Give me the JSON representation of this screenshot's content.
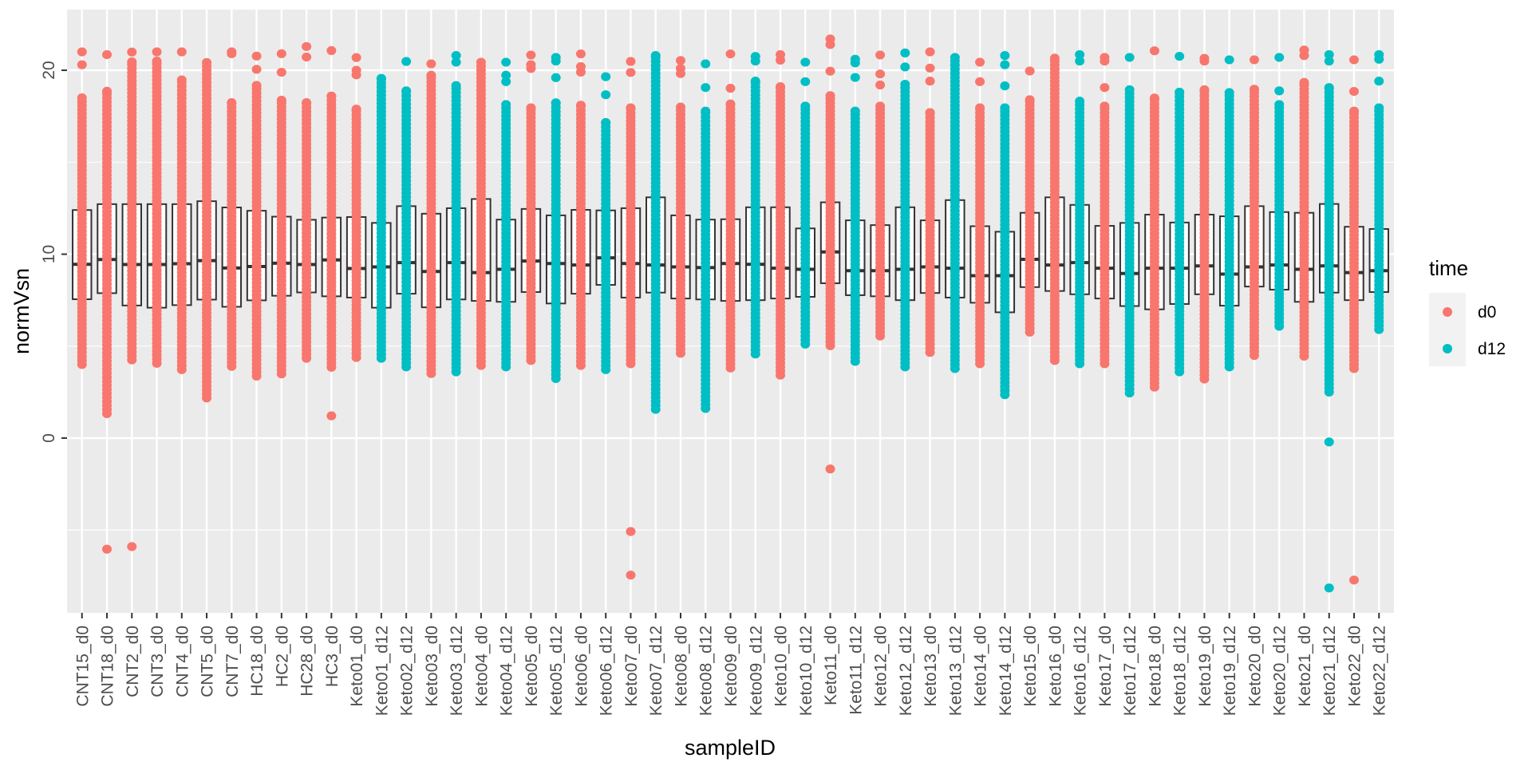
{
  "chart_data": {
    "type": "boxplot",
    "xlabel": "sampleID",
    "ylabel": "normVsn",
    "ylim": [
      -9.5,
      23.3
    ],
    "y_ticks": [
      0,
      10,
      20
    ],
    "y_minor_ticks": [
      -5,
      5,
      15
    ],
    "grid": true,
    "legend": {
      "title": "time",
      "placement": "right",
      "entries": [
        {
          "label": "d0",
          "color": "#F8766D"
        },
        {
          "label": "d12",
          "color": "#00BFC4"
        }
      ]
    },
    "colors": {
      "panel_background": "#EBEBEB",
      "grid": "#FFFFFF",
      "box_line": "#333333",
      "box_fill": "#FFFFFF"
    },
    "samples": [
      {
        "id": "CNT15_d0",
        "time": "d0",
        "q1": 7.55,
        "median": 9.45,
        "q3": 12.4,
        "whisker_low": 4.0,
        "whisker_high": 18.5,
        "points_above": [
          20.3,
          21.0
        ],
        "points_below": []
      },
      {
        "id": "CNT18_d0",
        "time": "d0",
        "q1": 7.88,
        "median": 9.71,
        "q3": 12.72,
        "whisker_low": 1.33,
        "whisker_high": 18.86,
        "points_above": [
          20.85
        ],
        "points_below": [
          -6.04
        ]
      },
      {
        "id": "CNT2_d0",
        "time": "d0",
        "q1": 7.21,
        "median": 9.44,
        "q3": 12.72,
        "whisker_low": 4.25,
        "whisker_high": 20.46,
        "points_above": [
          20.99
        ],
        "points_below": [
          -5.9
        ]
      },
      {
        "id": "CNT3_d0",
        "time": "d0",
        "q1": 7.09,
        "median": 9.44,
        "q3": 12.72,
        "whisker_low": 4.07,
        "whisker_high": 20.5,
        "points_above": [
          21.0
        ],
        "points_below": []
      },
      {
        "id": "CNT4_d0",
        "time": "d0",
        "q1": 7.23,
        "median": 9.48,
        "q3": 12.72,
        "whisker_low": 3.72,
        "whisker_high": 19.48,
        "points_above": [
          21.0
        ],
        "points_below": []
      },
      {
        "id": "CNT5_d0",
        "time": "d0",
        "q1": 7.53,
        "median": 9.65,
        "q3": 12.88,
        "whisker_low": 2.18,
        "whisker_high": 20.42,
        "points_above": [],
        "points_below": []
      },
      {
        "id": "CNT7_d0",
        "time": "d0",
        "q1": 7.14,
        "median": 9.25,
        "q3": 12.54,
        "whisker_low": 3.9,
        "whisker_high": 18.24,
        "points_above": [
          20.9,
          21.0
        ],
        "points_below": []
      },
      {
        "id": "HC18_d0",
        "time": "d0",
        "q1": 7.49,
        "median": 9.33,
        "q3": 12.36,
        "whisker_low": 3.37,
        "whisker_high": 19.18,
        "points_above": [
          20.05,
          20.77
        ],
        "points_below": []
      },
      {
        "id": "HC2_d0",
        "time": "d0",
        "q1": 7.74,
        "median": 9.51,
        "q3": 12.04,
        "whisker_low": 3.49,
        "whisker_high": 18.37,
        "points_above": [
          19.89,
          20.9
        ],
        "points_below": []
      },
      {
        "id": "HC28_d0",
        "time": "d0",
        "q1": 7.92,
        "median": 9.44,
        "q3": 11.87,
        "whisker_low": 4.34,
        "whisker_high": 18.24,
        "points_above": [
          20.72,
          21.29
        ],
        "points_below": []
      },
      {
        "id": "HC3_d0",
        "time": "d0",
        "q1": 7.71,
        "median": 9.69,
        "q3": 11.99,
        "whisker_low": 3.85,
        "whisker_high": 18.6,
        "points_above": [
          21.07
        ],
        "points_below": [
          1.21
        ]
      },
      {
        "id": "Keto01_d0",
        "time": "d0",
        "q1": 7.64,
        "median": 9.22,
        "q3": 12.02,
        "whisker_low": 4.38,
        "whisker_high": 17.89,
        "points_above": [
          19.75,
          20.0,
          20.69
        ],
        "points_below": []
      },
      {
        "id": "Keto01_d12",
        "time": "d12",
        "q1": 7.09,
        "median": 9.31,
        "q3": 11.7,
        "whisker_low": 4.34,
        "whisker_high": 19.56,
        "points_above": [],
        "points_below": []
      },
      {
        "id": "Keto02_d12",
        "time": "d12",
        "q1": 7.85,
        "median": 9.54,
        "q3": 12.61,
        "whisker_low": 3.87,
        "whisker_high": 18.88,
        "points_above": [
          20.48
        ],
        "points_below": []
      },
      {
        "id": "Keto03_d0",
        "time": "d0",
        "q1": 7.11,
        "median": 9.06,
        "q3": 12.2,
        "whisker_low": 3.51,
        "whisker_high": 19.73,
        "points_above": [
          20.35
        ],
        "points_below": []
      },
      {
        "id": "Keto03_d12",
        "time": "d12",
        "q1": 7.54,
        "median": 9.54,
        "q3": 12.5,
        "whisker_low": 3.6,
        "whisker_high": 19.17,
        "points_above": [
          20.44,
          20.8
        ],
        "points_below": []
      },
      {
        "id": "Keto04_d0",
        "time": "d0",
        "q1": 7.46,
        "median": 9.0,
        "q3": 13.0,
        "whisker_low": 3.95,
        "whisker_high": 20.44,
        "points_above": [],
        "points_below": []
      },
      {
        "id": "Keto04_d12",
        "time": "d12",
        "q1": 7.41,
        "median": 9.18,
        "q3": 11.88,
        "whisker_low": 3.87,
        "whisker_high": 18.14,
        "points_above": [
          19.38,
          19.73,
          20.44
        ],
        "points_below": []
      },
      {
        "id": "Keto05_d0",
        "time": "d0",
        "q1": 7.94,
        "median": 9.63,
        "q3": 12.46,
        "whisker_low": 4.22,
        "whisker_high": 17.96,
        "points_above": [
          20.1,
          20.3,
          20.83
        ],
        "points_below": []
      },
      {
        "id": "Keto05_d12",
        "time": "d12",
        "q1": 7.32,
        "median": 9.49,
        "q3": 12.11,
        "whisker_low": 3.24,
        "whisker_high": 18.23,
        "points_above": [
          19.6,
          20.5,
          20.7
        ],
        "points_below": []
      },
      {
        "id": "Keto06_d0",
        "time": "d0",
        "q1": 7.85,
        "median": 9.41,
        "q3": 12.41,
        "whisker_low": 3.95,
        "whisker_high": 18.1,
        "points_above": [
          19.9,
          20.2,
          20.89
        ],
        "points_below": []
      },
      {
        "id": "Keto06_d12",
        "time": "d12",
        "q1": 8.33,
        "median": 9.8,
        "q3": 12.38,
        "whisker_low": 3.72,
        "whisker_high": 17.16,
        "points_above": [
          18.67,
          19.65
        ],
        "points_below": []
      },
      {
        "id": "Keto07_d0",
        "time": "d0",
        "q1": 7.64,
        "median": 9.49,
        "q3": 12.5,
        "whisker_low": 4.04,
        "whisker_high": 17.96,
        "points_above": [
          19.88,
          20.48
        ],
        "points_below": [
          -5.08,
          -7.45
        ]
      },
      {
        "id": "Keto07_d12",
        "time": "d12",
        "q1": 7.91,
        "median": 9.41,
        "q3": 13.09,
        "whisker_low": 1.56,
        "whisker_high": 20.8,
        "points_above": [],
        "points_below": []
      },
      {
        "id": "Keto08_d0",
        "time": "d0",
        "q1": 7.59,
        "median": 9.31,
        "q3": 12.11,
        "whisker_low": 4.61,
        "whisker_high": 18.0,
        "points_above": [
          19.82,
          20.1,
          20.53
        ],
        "points_below": []
      },
      {
        "id": "Keto08_d12",
        "time": "d12",
        "q1": 7.54,
        "median": 9.27,
        "q3": 11.88,
        "whisker_low": 1.61,
        "whisker_high": 17.78,
        "points_above": [
          19.06,
          20.35
        ],
        "points_below": []
      },
      {
        "id": "Keto09_d0",
        "time": "d0",
        "q1": 7.46,
        "median": 9.49,
        "q3": 11.9,
        "whisker_low": 3.81,
        "whisker_high": 18.17,
        "points_above": [
          19.02,
          20.89
        ],
        "points_below": []
      },
      {
        "id": "Keto09_d12",
        "time": "d12",
        "q1": 7.5,
        "median": 9.45,
        "q3": 12.55,
        "whisker_low": 4.57,
        "whisker_high": 19.41,
        "points_above": [
          20.5,
          20.75
        ],
        "points_below": []
      },
      {
        "id": "Keto10_d0",
        "time": "d0",
        "q1": 7.59,
        "median": 9.24,
        "q3": 12.55,
        "whisker_low": 3.42,
        "whisker_high": 19.11,
        "points_above": [
          20.55,
          20.85
        ],
        "points_below": []
      },
      {
        "id": "Keto10_d12",
        "time": "d12",
        "q1": 7.68,
        "median": 9.18,
        "q3": 11.4,
        "whisker_low": 5.11,
        "whisker_high": 18.05,
        "points_above": [
          19.38,
          20.44
        ],
        "points_below": []
      },
      {
        "id": "Keto11_d0",
        "time": "d0",
        "q1": 8.42,
        "median": 10.12,
        "q3": 12.82,
        "whisker_low": 5.02,
        "whisker_high": 18.62,
        "points_above": [
          19.95,
          21.4,
          21.7
        ],
        "points_below": [
          -1.68
        ]
      },
      {
        "id": "Keto11_d12",
        "time": "d12",
        "q1": 7.77,
        "median": 9.1,
        "q3": 11.84,
        "whisker_low": 4.17,
        "whisker_high": 17.78,
        "points_above": [
          19.61,
          20.4,
          20.6
        ],
        "points_below": []
      },
      {
        "id": "Keto12_d0",
        "time": "d0",
        "q1": 7.71,
        "median": 9.1,
        "q3": 11.58,
        "whisker_low": 5.55,
        "whisker_high": 18.05,
        "points_above": [
          19.2,
          19.8,
          20.83
        ],
        "points_below": []
      },
      {
        "id": "Keto12_d12",
        "time": "d12",
        "q1": 7.5,
        "median": 9.18,
        "q3": 12.55,
        "whisker_low": 3.87,
        "whisker_high": 19.24,
        "points_above": [
          20.18,
          20.94
        ],
        "points_below": []
      },
      {
        "id": "Keto13_d0",
        "time": "d0",
        "q1": 7.89,
        "median": 9.31,
        "q3": 11.84,
        "whisker_low": 4.66,
        "whisker_high": 17.7,
        "points_above": [
          19.41,
          20.12,
          21.0
        ],
        "points_below": []
      },
      {
        "id": "Keto13_d12",
        "time": "d12",
        "q1": 7.64,
        "median": 9.24,
        "q3": 12.94,
        "whisker_low": 3.78,
        "whisker_high": 20.7,
        "points_above": [],
        "points_below": []
      },
      {
        "id": "Keto14_d0",
        "time": "d0",
        "q1": 7.36,
        "median": 8.83,
        "q3": 11.52,
        "whisker_low": 4.04,
        "whisker_high": 17.96,
        "points_above": [
          19.38,
          20.44
        ],
        "points_below": []
      },
      {
        "id": "Keto14_d12",
        "time": "d12",
        "q1": 6.84,
        "median": 8.83,
        "q3": 11.22,
        "whisker_low": 2.36,
        "whisker_high": 17.96,
        "points_above": [
          19.15,
          20.3,
          20.8
        ],
        "points_below": []
      },
      {
        "id": "Keto15_d0",
        "time": "d0",
        "q1": 8.21,
        "median": 9.72,
        "q3": 12.25,
        "whisker_low": 5.76,
        "whisker_high": 18.4,
        "points_above": [
          19.96
        ],
        "points_below": []
      },
      {
        "id": "Keto16_d0",
        "time": "d0",
        "q1": 8.0,
        "median": 9.41,
        "q3": 13.09,
        "whisker_low": 4.22,
        "whisker_high": 20.66,
        "points_above": [],
        "points_below": []
      },
      {
        "id": "Keto16_d12",
        "time": "d12",
        "q1": 7.82,
        "median": 9.54,
        "q3": 12.68,
        "whisker_low": 4.04,
        "whisker_high": 18.32,
        "points_above": [
          20.5,
          20.85
        ],
        "points_below": []
      },
      {
        "id": "Keto17_d0",
        "time": "d0",
        "q1": 7.59,
        "median": 9.24,
        "q3": 11.54,
        "whisker_low": 4.04,
        "whisker_high": 18.05,
        "points_above": [
          19.06,
          20.5,
          20.7
        ],
        "points_below": []
      },
      {
        "id": "Keto17_d12",
        "time": "d12",
        "q1": 7.18,
        "median": 8.95,
        "q3": 11.7,
        "whisker_low": 2.45,
        "whisker_high": 18.94,
        "points_above": [
          20.7
        ],
        "points_below": []
      },
      {
        "id": "Keto18_d0",
        "time": "d0",
        "q1": 7.0,
        "median": 9.24,
        "q3": 12.15,
        "whisker_low": 2.77,
        "whisker_high": 18.49,
        "points_above": [
          21.06
        ],
        "points_below": []
      },
      {
        "id": "Keto18_d12",
        "time": "d12",
        "q1": 7.29,
        "median": 9.24,
        "q3": 11.72,
        "whisker_low": 3.6,
        "whisker_high": 18.81,
        "points_above": [
          20.76
        ],
        "points_below": []
      },
      {
        "id": "Keto19_d0",
        "time": "d0",
        "q1": 7.82,
        "median": 9.36,
        "q3": 12.15,
        "whisker_low": 3.21,
        "whisker_high": 18.94,
        "points_above": [
          20.5,
          20.65
        ],
        "points_below": []
      },
      {
        "id": "Keto19_d12",
        "time": "d12",
        "q1": 7.2,
        "median": 8.92,
        "q3": 12.06,
        "whisker_low": 3.87,
        "whisker_high": 18.79,
        "points_above": [
          20.57
        ],
        "points_below": []
      },
      {
        "id": "Keto20_d0",
        "time": "d0",
        "q1": 8.24,
        "median": 9.31,
        "q3": 12.61,
        "whisker_low": 4.49,
        "whisker_high": 18.97,
        "points_above": [
          20.57
        ],
        "points_below": []
      },
      {
        "id": "Keto20_d12",
        "time": "d12",
        "q1": 8.07,
        "median": 9.41,
        "q3": 12.29,
        "whisker_low": 6.08,
        "whisker_high": 18.14,
        "points_above": [
          18.88,
          20.7
        ],
        "points_below": []
      },
      {
        "id": "Keto21_d0",
        "time": "d0",
        "q1": 7.41,
        "median": 9.18,
        "q3": 12.25,
        "whisker_low": 4.45,
        "whisker_high": 19.34,
        "points_above": [
          20.8,
          21.1
        ],
        "points_below": []
      },
      {
        "id": "Keto21_d12",
        "time": "d12",
        "q1": 7.91,
        "median": 9.36,
        "q3": 12.73,
        "whisker_low": 2.5,
        "whisker_high": 19.06,
        "points_above": [
          20.5,
          20.85
        ],
        "points_below": [
          -0.21,
          -8.15
        ]
      },
      {
        "id": "Keto22_d0",
        "time": "d0",
        "q1": 7.5,
        "median": 9.0,
        "q3": 11.49,
        "whisker_low": 3.78,
        "whisker_high": 17.78,
        "points_above": [
          18.85,
          20.57
        ],
        "points_below": [
          -7.72
        ]
      },
      {
        "id": "Keto22_d12",
        "time": "d12",
        "q1": 7.94,
        "median": 9.1,
        "q3": 11.37,
        "whisker_low": 5.9,
        "whisker_high": 17.96,
        "points_above": [
          19.41,
          20.6,
          20.85
        ],
        "points_below": []
      }
    ]
  }
}
